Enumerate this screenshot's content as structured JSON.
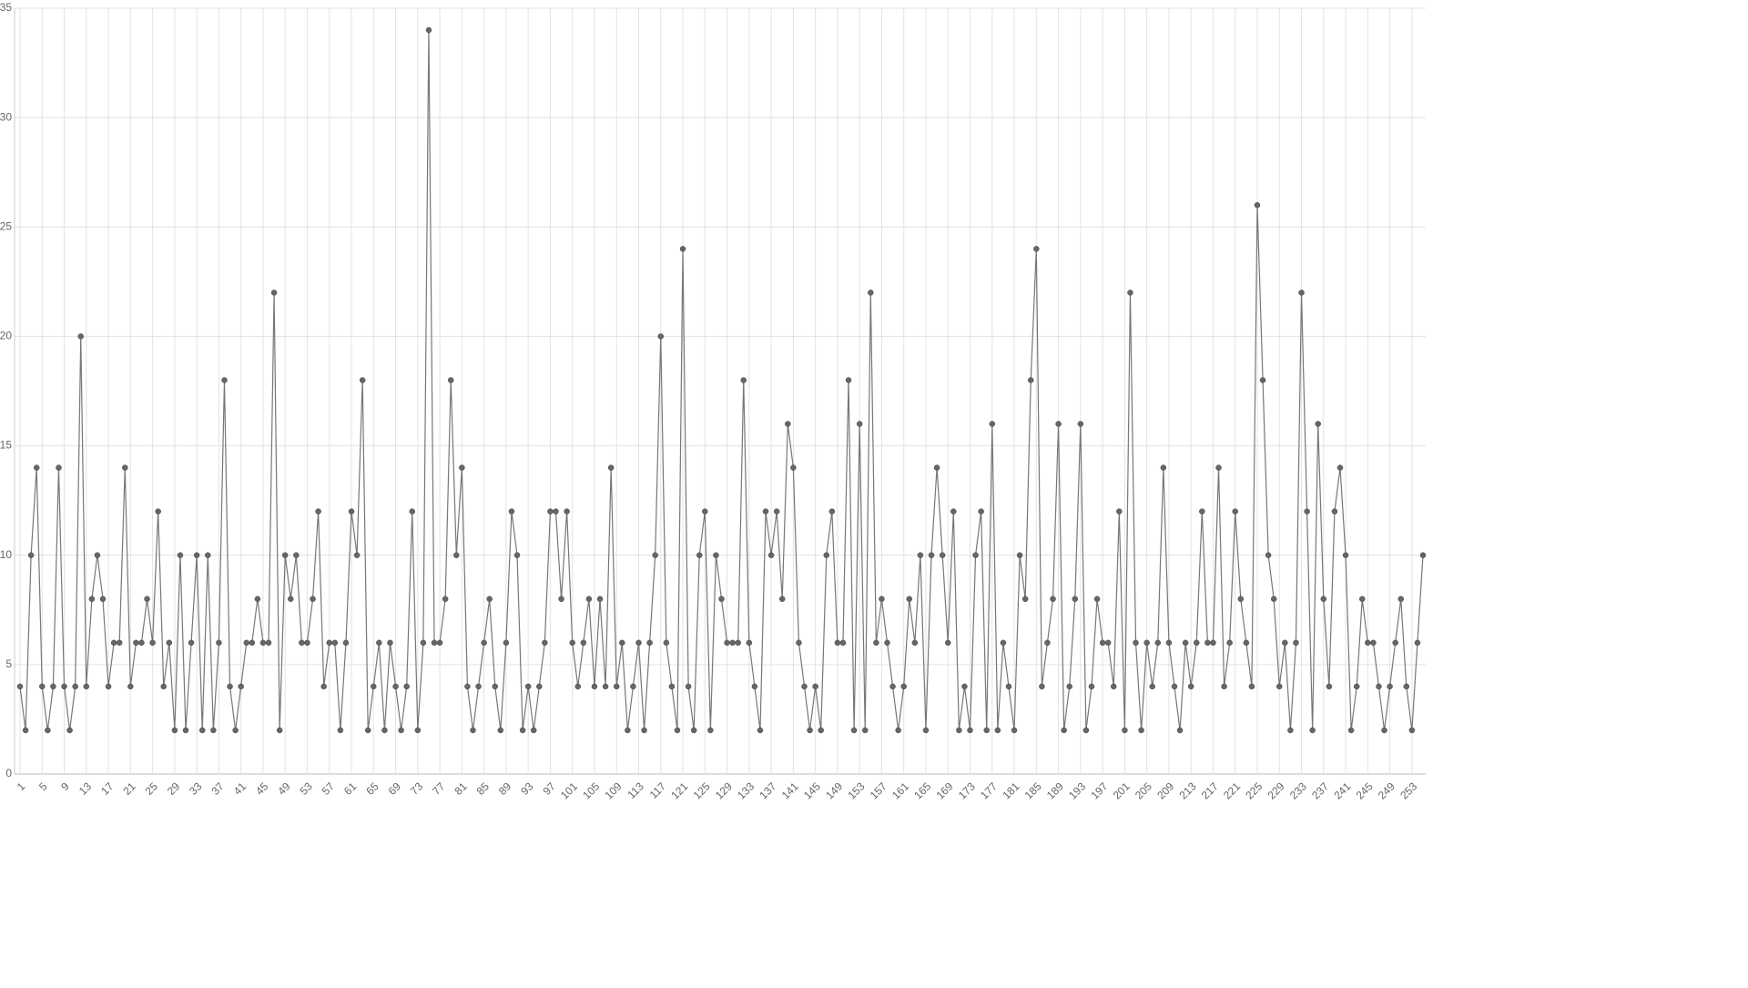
{
  "chart_data": {
    "type": "line",
    "categories": [
      1,
      null,
      null,
      null,
      5,
      null,
      null,
      null,
      9,
      null,
      null,
      null,
      13,
      null,
      null,
      null,
      17,
      null,
      null,
      null,
      21,
      null,
      null,
      null,
      25,
      null,
      null,
      null,
      29,
      null,
      null,
      null,
      33,
      null,
      null,
      null,
      37,
      null,
      null,
      null,
      41,
      null,
      null,
      null,
      45,
      null,
      null,
      null,
      49,
      null,
      null,
      null,
      53,
      null,
      null,
      null,
      57,
      null,
      null,
      null,
      61,
      null,
      null,
      null,
      65,
      null,
      null,
      null,
      69,
      null,
      null,
      null,
      73,
      null,
      null,
      null,
      77,
      null,
      null,
      null,
      81,
      null,
      null,
      null,
      85,
      null,
      null,
      null,
      89,
      null,
      null,
      null,
      93,
      null,
      null,
      null,
      97,
      null,
      null,
      null,
      101,
      null,
      null,
      null,
      105,
      null,
      null,
      null,
      109,
      null,
      null,
      null,
      113,
      null,
      null,
      null,
      117,
      null,
      null,
      null,
      121,
      null,
      null,
      null,
      125,
      null,
      null,
      null,
      129,
      null,
      null,
      null,
      133,
      null,
      null,
      null,
      137,
      null,
      null,
      null,
      141,
      null,
      null,
      null,
      145,
      null,
      null,
      null,
      149,
      null,
      null,
      null,
      153,
      null,
      null,
      null,
      157,
      null,
      null,
      null,
      161,
      null,
      null,
      null,
      165,
      null,
      null,
      null,
      169,
      null,
      null,
      null,
      173,
      null,
      null,
      null,
      177,
      null,
      null,
      null,
      181,
      null,
      null,
      null,
      185,
      null,
      null,
      null,
      189,
      null,
      null,
      null,
      193,
      null,
      null,
      null,
      197,
      null,
      null,
      null,
      201,
      null,
      null,
      null,
      205,
      null,
      null,
      null,
      209,
      null,
      null,
      null,
      213,
      null,
      null,
      null,
      217,
      null,
      null,
      null,
      221,
      null,
      null,
      null,
      225,
      null,
      null,
      null,
      229,
      null,
      null,
      null,
      233,
      null,
      null,
      null,
      237,
      null,
      null,
      null,
      241,
      null,
      null,
      null,
      245,
      null,
      null,
      null,
      249,
      null,
      null,
      null,
      253,
      null,
      null
    ],
    "values": [
      4,
      2,
      10,
      14,
      4,
      2,
      4,
      14,
      4,
      2,
      4,
      20,
      4,
      8,
      10,
      8,
      4,
      6,
      6,
      14,
      4,
      6,
      6,
      8,
      6,
      12,
      4,
      6,
      2,
      10,
      2,
      6,
      10,
      2,
      10,
      2,
      6,
      18,
      4,
      2,
      4,
      6,
      6,
      8,
      6,
      6,
      22,
      2,
      10,
      8,
      10,
      6,
      6,
      8,
      12,
      4,
      6,
      6,
      2,
      6,
      12,
      10,
      18,
      2,
      4,
      6,
      2,
      6,
      4,
      2,
      4,
      12,
      2,
      6,
      34,
      6,
      6,
      8,
      18,
      10,
      14,
      4,
      2,
      4,
      6,
      8,
      4,
      2,
      6,
      12,
      10,
      2,
      4,
      2,
      4,
      6,
      12,
      12,
      8,
      12,
      6,
      4,
      6,
      8,
      4,
      8,
      4,
      14,
      4,
      6,
      2,
      4,
      6,
      2,
      6,
      10,
      20,
      6,
      4,
      2,
      24,
      4,
      2,
      10,
      12,
      2,
      10,
      8,
      6,
      6,
      6,
      18,
      6,
      4,
      2,
      12,
      10,
      12,
      8,
      16,
      14,
      6,
      4,
      2,
      4,
      2,
      10,
      12,
      6,
      6,
      18,
      2,
      16,
      2,
      22,
      6,
      8,
      6,
      4,
      2,
      4,
      8,
      6,
      10,
      2,
      10,
      14,
      10,
      6,
      12,
      2,
      4,
      2,
      10,
      12,
      2,
      16,
      2,
      6,
      4,
      2,
      10,
      8,
      18,
      24,
      4,
      6,
      8,
      16,
      2,
      4,
      8,
      16,
      2,
      4,
      8,
      6,
      6,
      4,
      12,
      2,
      22,
      6,
      2,
      6,
      4,
      6,
      14,
      6,
      4,
      2,
      6,
      4,
      6,
      12,
      6,
      6,
      14,
      4,
      6,
      12,
      8,
      6,
      4,
      26,
      18,
      10,
      8,
      4,
      6,
      2,
      6,
      22,
      12,
      2,
      16,
      8,
      4,
      12,
      14,
      10,
      2,
      4,
      8,
      6,
      6,
      4,
      2,
      4,
      6,
      8,
      4,
      2,
      6,
      10
    ],
    "color": "#777777",
    "ylim": [
      0,
      35
    ],
    "yticks": [
      0,
      5,
      10,
      15,
      20,
      25,
      30,
      35
    ],
    "grid": true
  }
}
